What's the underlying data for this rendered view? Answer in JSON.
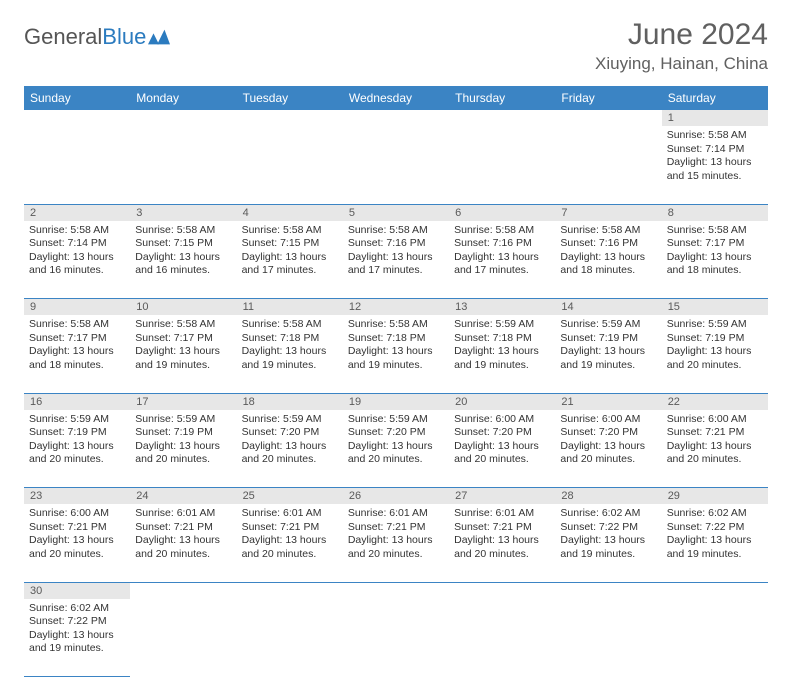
{
  "logo": {
    "text1": "General",
    "text2": "Blue"
  },
  "title": "June 2024",
  "location": "Xiuying, Hainan, China",
  "weekday_header_bg": "#3b84c4",
  "weekdays": [
    "Sunday",
    "Monday",
    "Tuesday",
    "Wednesday",
    "Thursday",
    "Friday",
    "Saturday"
  ],
  "weeks": [
    {
      "nums": [
        "",
        "",
        "",
        "",
        "",
        "",
        "1"
      ],
      "cells": [
        null,
        null,
        null,
        null,
        null,
        null,
        {
          "sunrise": "Sunrise: 5:58 AM",
          "sunset": "Sunset: 7:14 PM",
          "day1": "Daylight: 13 hours",
          "day2": "and 15 minutes."
        }
      ]
    },
    {
      "nums": [
        "2",
        "3",
        "4",
        "5",
        "6",
        "7",
        "8"
      ],
      "cells": [
        {
          "sunrise": "Sunrise: 5:58 AM",
          "sunset": "Sunset: 7:14 PM",
          "day1": "Daylight: 13 hours",
          "day2": "and 16 minutes."
        },
        {
          "sunrise": "Sunrise: 5:58 AM",
          "sunset": "Sunset: 7:15 PM",
          "day1": "Daylight: 13 hours",
          "day2": "and 16 minutes."
        },
        {
          "sunrise": "Sunrise: 5:58 AM",
          "sunset": "Sunset: 7:15 PM",
          "day1": "Daylight: 13 hours",
          "day2": "and 17 minutes."
        },
        {
          "sunrise": "Sunrise: 5:58 AM",
          "sunset": "Sunset: 7:16 PM",
          "day1": "Daylight: 13 hours",
          "day2": "and 17 minutes."
        },
        {
          "sunrise": "Sunrise: 5:58 AM",
          "sunset": "Sunset: 7:16 PM",
          "day1": "Daylight: 13 hours",
          "day2": "and 17 minutes."
        },
        {
          "sunrise": "Sunrise: 5:58 AM",
          "sunset": "Sunset: 7:16 PM",
          "day1": "Daylight: 13 hours",
          "day2": "and 18 minutes."
        },
        {
          "sunrise": "Sunrise: 5:58 AM",
          "sunset": "Sunset: 7:17 PM",
          "day1": "Daylight: 13 hours",
          "day2": "and 18 minutes."
        }
      ]
    },
    {
      "nums": [
        "9",
        "10",
        "11",
        "12",
        "13",
        "14",
        "15"
      ],
      "cells": [
        {
          "sunrise": "Sunrise: 5:58 AM",
          "sunset": "Sunset: 7:17 PM",
          "day1": "Daylight: 13 hours",
          "day2": "and 18 minutes."
        },
        {
          "sunrise": "Sunrise: 5:58 AM",
          "sunset": "Sunset: 7:17 PM",
          "day1": "Daylight: 13 hours",
          "day2": "and 19 minutes."
        },
        {
          "sunrise": "Sunrise: 5:58 AM",
          "sunset": "Sunset: 7:18 PM",
          "day1": "Daylight: 13 hours",
          "day2": "and 19 minutes."
        },
        {
          "sunrise": "Sunrise: 5:58 AM",
          "sunset": "Sunset: 7:18 PM",
          "day1": "Daylight: 13 hours",
          "day2": "and 19 minutes."
        },
        {
          "sunrise": "Sunrise: 5:59 AM",
          "sunset": "Sunset: 7:18 PM",
          "day1": "Daylight: 13 hours",
          "day2": "and 19 minutes."
        },
        {
          "sunrise": "Sunrise: 5:59 AM",
          "sunset": "Sunset: 7:19 PM",
          "day1": "Daylight: 13 hours",
          "day2": "and 19 minutes."
        },
        {
          "sunrise": "Sunrise: 5:59 AM",
          "sunset": "Sunset: 7:19 PM",
          "day1": "Daylight: 13 hours",
          "day2": "and 20 minutes."
        }
      ]
    },
    {
      "nums": [
        "16",
        "17",
        "18",
        "19",
        "20",
        "21",
        "22"
      ],
      "cells": [
        {
          "sunrise": "Sunrise: 5:59 AM",
          "sunset": "Sunset: 7:19 PM",
          "day1": "Daylight: 13 hours",
          "day2": "and 20 minutes."
        },
        {
          "sunrise": "Sunrise: 5:59 AM",
          "sunset": "Sunset: 7:19 PM",
          "day1": "Daylight: 13 hours",
          "day2": "and 20 minutes."
        },
        {
          "sunrise": "Sunrise: 5:59 AM",
          "sunset": "Sunset: 7:20 PM",
          "day1": "Daylight: 13 hours",
          "day2": "and 20 minutes."
        },
        {
          "sunrise": "Sunrise: 5:59 AM",
          "sunset": "Sunset: 7:20 PM",
          "day1": "Daylight: 13 hours",
          "day2": "and 20 minutes."
        },
        {
          "sunrise": "Sunrise: 6:00 AM",
          "sunset": "Sunset: 7:20 PM",
          "day1": "Daylight: 13 hours",
          "day2": "and 20 minutes."
        },
        {
          "sunrise": "Sunrise: 6:00 AM",
          "sunset": "Sunset: 7:20 PM",
          "day1": "Daylight: 13 hours",
          "day2": "and 20 minutes."
        },
        {
          "sunrise": "Sunrise: 6:00 AM",
          "sunset": "Sunset: 7:21 PM",
          "day1": "Daylight: 13 hours",
          "day2": "and 20 minutes."
        }
      ]
    },
    {
      "nums": [
        "23",
        "24",
        "25",
        "26",
        "27",
        "28",
        "29"
      ],
      "cells": [
        {
          "sunrise": "Sunrise: 6:00 AM",
          "sunset": "Sunset: 7:21 PM",
          "day1": "Daylight: 13 hours",
          "day2": "and 20 minutes."
        },
        {
          "sunrise": "Sunrise: 6:01 AM",
          "sunset": "Sunset: 7:21 PM",
          "day1": "Daylight: 13 hours",
          "day2": "and 20 minutes."
        },
        {
          "sunrise": "Sunrise: 6:01 AM",
          "sunset": "Sunset: 7:21 PM",
          "day1": "Daylight: 13 hours",
          "day2": "and 20 minutes."
        },
        {
          "sunrise": "Sunrise: 6:01 AM",
          "sunset": "Sunset: 7:21 PM",
          "day1": "Daylight: 13 hours",
          "day2": "and 20 minutes."
        },
        {
          "sunrise": "Sunrise: 6:01 AM",
          "sunset": "Sunset: 7:21 PM",
          "day1": "Daylight: 13 hours",
          "day2": "and 20 minutes."
        },
        {
          "sunrise": "Sunrise: 6:02 AM",
          "sunset": "Sunset: 7:22 PM",
          "day1": "Daylight: 13 hours",
          "day2": "and 19 minutes."
        },
        {
          "sunrise": "Sunrise: 6:02 AM",
          "sunset": "Sunset: 7:22 PM",
          "day1": "Daylight: 13 hours",
          "day2": "and 19 minutes."
        }
      ]
    },
    {
      "nums": [
        "30",
        "",
        "",
        "",
        "",
        "",
        ""
      ],
      "cells": [
        {
          "sunrise": "Sunrise: 6:02 AM",
          "sunset": "Sunset: 7:22 PM",
          "day1": "Daylight: 13 hours",
          "day2": "and 19 minutes."
        },
        null,
        null,
        null,
        null,
        null,
        null
      ]
    }
  ]
}
